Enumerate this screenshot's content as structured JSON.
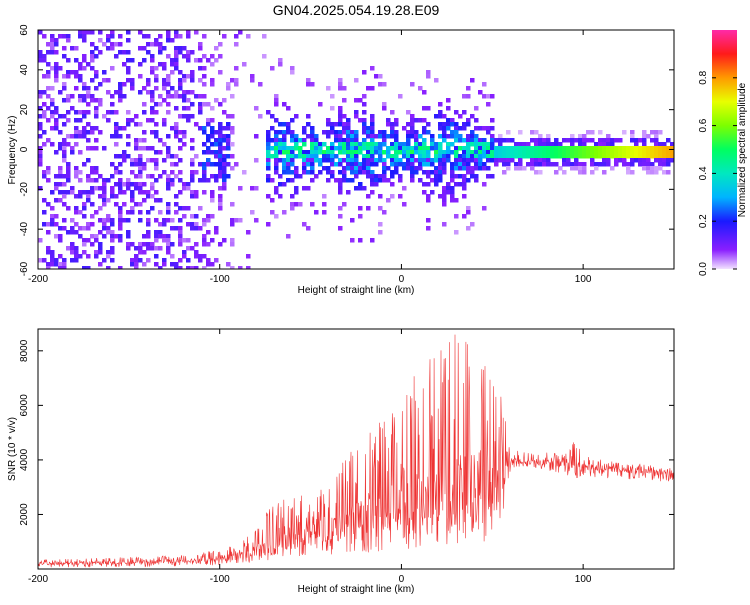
{
  "chart_data": [
    {
      "type": "heatmap",
      "title": "GN04.2025.054.19.28.E09",
      "xlabel": "Height of straight line (km)",
      "ylabel": "Frequency (Hz)",
      "xlim": [
        -200,
        150
      ],
      "ylim": [
        -60,
        60
      ],
      "xticks": [
        "-200",
        "-100",
        "0",
        "100"
      ],
      "yticks": [
        "-60",
        "-40",
        "-20",
        "0",
        "20",
        "40",
        "60"
      ],
      "colorbar": {
        "label": "Normalized spectral amplitude",
        "range": [
          0,
          1
        ],
        "ticks": [
          "0.0",
          "0.2",
          "0.4",
          "0.6",
          "0.8"
        ]
      },
      "ridge_frequency_hz": 0,
      "grid": false
    },
    {
      "type": "line",
      "xlabel": "Height of straight line (km)",
      "ylabel": "SNR (10 * v/v)",
      "xlim": [
        -200,
        150
      ],
      "ylim": [
        0,
        8800
      ],
      "xticks": [
        "-200",
        "-100",
        "0",
        "100"
      ],
      "yticks": [
        "2000",
        "4000",
        "6000",
        "8000"
      ],
      "color": "#ee3333",
      "grid": false,
      "series": [
        {
          "x": [
            -200,
            -180,
            -160,
            -140,
            -120,
            -110,
            -100,
            -90,
            -80,
            -70,
            -60,
            -50,
            -40,
            -30,
            -20,
            -10,
            0,
            10,
            20,
            30,
            40,
            50,
            55,
            58,
            60,
            70,
            80,
            90,
            95,
            100,
            110,
            120,
            130,
            140,
            150
          ],
          "baseline": [
            200,
            220,
            240,
            260,
            300,
            330,
            380,
            480,
            650,
            850,
            1050,
            1250,
            1450,
            1650,
            1850,
            2050,
            2250,
            2500,
            2750,
            2950,
            3150,
            3350,
            3600,
            3900,
            4000,
            3950,
            3900,
            3850,
            3900,
            3750,
            3700,
            3650,
            3600,
            3550,
            3500
          ],
          "peak": [
            350,
            380,
            420,
            450,
            520,
            600,
            750,
            950,
            1500,
            2500,
            2600,
            2800,
            3200,
            4200,
            4800,
            5600,
            6600,
            7400,
            8000,
            8700,
            8200,
            7200,
            6600,
            6000,
            4300,
            4400,
            4300,
            4200,
            4800,
            4200,
            4000,
            3900,
            3850,
            3800,
            3750
          ],
          "trough": [
            50,
            60,
            70,
            80,
            100,
            120,
            150,
            200,
            250,
            350,
            400,
            450,
            500,
            550,
            600,
            650,
            700,
            800,
            900,
            900,
            900,
            1000,
            1500,
            2500,
            3700,
            3700,
            3600,
            3500,
            3300,
            3400,
            3350,
            3300,
            3250,
            3200,
            3150
          ]
        }
      ]
    }
  ]
}
